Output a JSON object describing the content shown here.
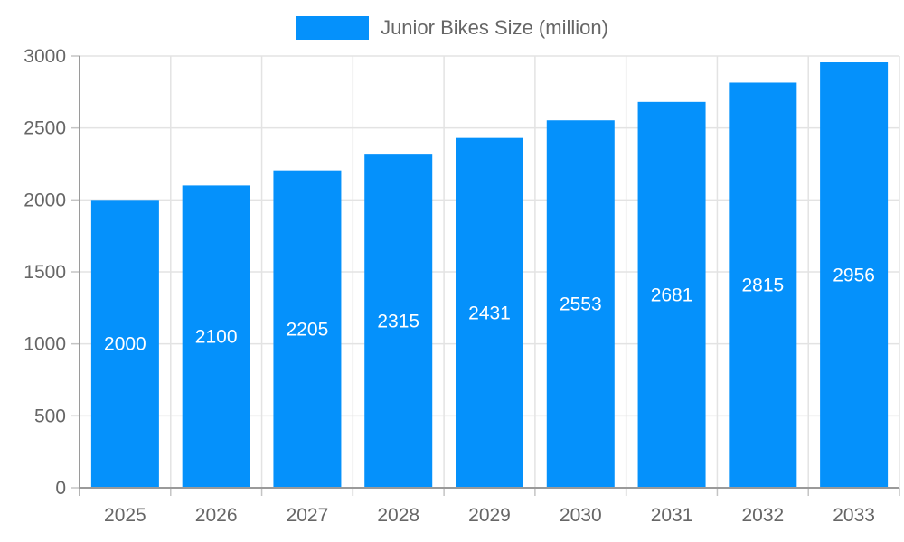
{
  "chart_data": {
    "type": "bar",
    "title": "Junior Bikes Size (million)",
    "categories": [
      "2025",
      "2026",
      "2027",
      "2028",
      "2029",
      "2030",
      "2031",
      "2032",
      "2033"
    ],
    "series": [
      {
        "name": "Junior Bikes Size (million)",
        "values": [
          2000,
          2100,
          2205,
          2315,
          2431,
          2553,
          2681,
          2815,
          2956
        ]
      }
    ],
    "bar_labels": [
      "2000",
      "2100",
      "2205",
      "2315",
      "2431",
      "2553",
      "2681",
      "2815",
      "2956"
    ],
    "xlabel": "",
    "ylabel": "",
    "ylim": [
      0,
      3000
    ],
    "yticks": [
      0,
      500,
      1000,
      1500,
      2000,
      2500,
      3000
    ],
    "grid": true,
    "legend_position": "top",
    "colors": {
      "bar": "#0591fb",
      "bar_label": "#ffffff",
      "axis_text": "#666666",
      "grid_line": "#e3e3e3",
      "axis_line": "#9a9a9a",
      "tick_line": "#c4c4c4"
    }
  }
}
